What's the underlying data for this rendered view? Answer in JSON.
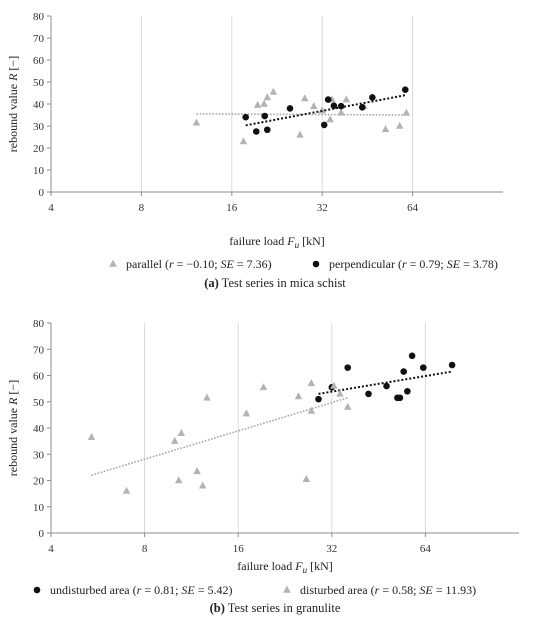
{
  "chart_data": [
    {
      "type": "scatter",
      "caption_label": "(a)",
      "caption_text": " Test series in mica schist",
      "xlabel": "failure load ",
      "xlabel_symbol": "F",
      "xlabel_sub": "u",
      "xlabel_unit": " [kN]",
      "ylabel": "rebound value ",
      "ylabel_symbol": "R",
      "ylabel_unit": " [−]",
      "x_scale": "log2",
      "xlim": [
        4,
        128
      ],
      "ylim": [
        0,
        80
      ],
      "xticks": [
        4,
        8,
        16,
        32,
        64
      ],
      "yticks": [
        0,
        10,
        20,
        30,
        40,
        50,
        60,
        70,
        80
      ],
      "grid": "vertical",
      "legend_position": "bottom",
      "series": [
        {
          "name": "parallel",
          "stats_open": " (",
          "r_symbol": "r",
          "r_text": " = −0.10; ",
          "se_symbol": "SE",
          "se_text": " = 7.36)",
          "marker": "triangle",
          "color": "#b3b3b3",
          "points": [
            [
              12.2,
              31.5
            ],
            [
              17.5,
              23
            ],
            [
              19.5,
              39.5
            ],
            [
              20.5,
              40
            ],
            [
              21,
              43
            ],
            [
              22,
              45.5
            ],
            [
              27,
              26
            ],
            [
              28,
              42.5
            ],
            [
              30,
              39
            ],
            [
              32,
              37
            ],
            [
              34,
              33
            ],
            [
              34.5,
              42
            ],
            [
              37,
              36
            ],
            [
              38.5,
              42
            ],
            [
              44,
              39
            ],
            [
              52,
              28.5
            ],
            [
              58,
              30
            ],
            [
              61,
              36
            ]
          ],
          "trend": {
            "x": [
              12.2,
              61
            ],
            "y": [
              35.5,
              35
            ]
          }
        },
        {
          "name": "perpendicular",
          "stats_open": " (",
          "r_symbol": "r",
          "r_text": " = 0.79; ",
          "se_symbol": "SE",
          "se_text": " = 3.78)",
          "marker": "circle",
          "color": "#111111",
          "points": [
            [
              17.8,
              34
            ],
            [
              19.3,
              27.5
            ],
            [
              20.6,
              34.5
            ],
            [
              21,
              28.3
            ],
            [
              25,
              38
            ],
            [
              32.5,
              30.5
            ],
            [
              33.5,
              42
            ],
            [
              35,
              39.2
            ],
            [
              37,
              39
            ],
            [
              43.5,
              38.5
            ],
            [
              47,
              43
            ],
            [
              60.5,
              46.5
            ]
          ],
          "trend": {
            "x": [
              17.8,
              60.5
            ],
            "y": [
              30.3,
              44
            ]
          }
        }
      ]
    },
    {
      "type": "scatter",
      "caption_label": "(b)",
      "caption_text": " Test series in granulite",
      "xlabel": "failure load ",
      "xlabel_symbol": "F",
      "xlabel_sub": "u",
      "xlabel_unit": " [kN]",
      "ylabel": "rebound value ",
      "ylabel_symbol": "R",
      "ylabel_unit": " [−]",
      "x_scale": "log2",
      "xlim": [
        4,
        128
      ],
      "ylim": [
        0,
        80
      ],
      "xticks": [
        4,
        8,
        16,
        32,
        64
      ],
      "yticks": [
        0,
        10,
        20,
        30,
        40,
        50,
        60,
        70,
        80
      ],
      "grid": "vertical",
      "legend_position": "bottom",
      "series": [
        {
          "name": "undisturbed area",
          "stats_open": " (",
          "r_symbol": "r",
          "r_text": " = 0.81; ",
          "se_symbol": "SE",
          "se_text": " = 5.42)",
          "marker": "circle",
          "color": "#111111",
          "points": [
            [
              29,
              51
            ],
            [
              32,
              55.5
            ],
            [
              36,
              63
            ],
            [
              42,
              53
            ],
            [
              48,
              56
            ],
            [
              52,
              51.5
            ],
            [
              53,
              51.5
            ],
            [
              54.5,
              61.5
            ],
            [
              56,
              54
            ],
            [
              58,
              67.5
            ],
            [
              63,
              63
            ],
            [
              78,
              64
            ]
          ],
          "trend": {
            "x": [
              29,
              78
            ],
            "y": [
              53,
              61.5
            ]
          }
        },
        {
          "name": "disturbed area",
          "stats_open": " (",
          "r_symbol": "r",
          "r_text": " = 0.58; ",
          "se_symbol": "SE",
          "se_text": " = 11.93)",
          "marker": "triangle",
          "color": "#b3b3b3",
          "points": [
            [
              5.4,
              36.5
            ],
            [
              7,
              16
            ],
            [
              10,
              35
            ],
            [
              10.3,
              20
            ],
            [
              10.5,
              38
            ],
            [
              11.8,
              23.5
            ],
            [
              12.3,
              18
            ],
            [
              12.7,
              51.5
            ],
            [
              17,
              45.5
            ],
            [
              19.3,
              55.5
            ],
            [
              25,
              52
            ],
            [
              26.5,
              20.5
            ],
            [
              27.5,
              46.5
            ],
            [
              27.5,
              57
            ],
            [
              32.5,
              56
            ],
            [
              34,
              53
            ],
            [
              36,
              48
            ]
          ],
          "trend": {
            "x": [
              5.4,
              36
            ],
            "y": [
              22,
              51.5
            ]
          }
        }
      ]
    }
  ]
}
